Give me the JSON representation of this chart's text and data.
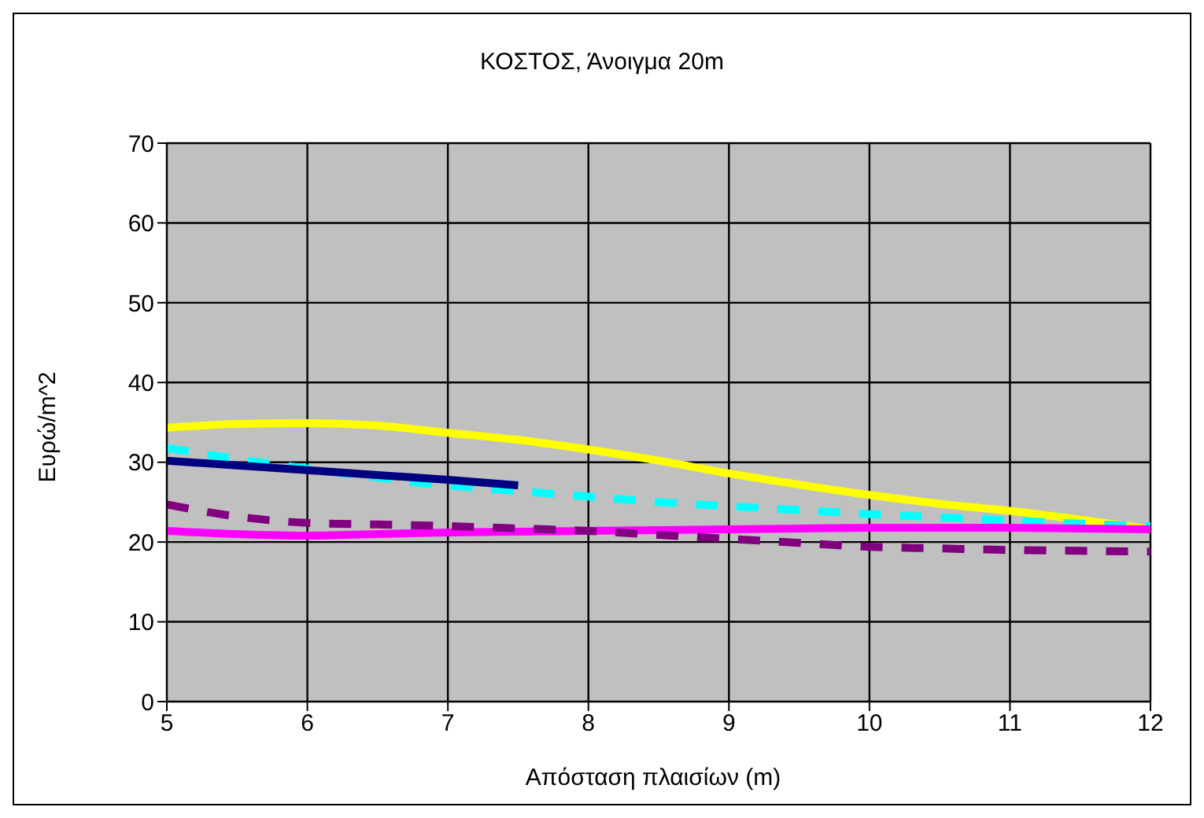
{
  "chart_data": {
    "type": "line",
    "title": "ΚΟΣΤΟΣ, Άνοιγμα 20m",
    "xlabel": "Απόσταση  πλαισίων  (m)",
    "ylabel": "Ευρώ/m^2",
    "x": [
      5,
      5.5,
      6,
      6.5,
      7,
      7.5,
      8,
      8.5,
      9,
      9.5,
      10,
      10.5,
      11,
      11.5,
      12
    ],
    "series": [
      {
        "color": "#ffff00",
        "line_style": "solid",
        "values": [
          34.3,
          34.8,
          34.9,
          34.6,
          33.7,
          32.8,
          31.6,
          30.2,
          28.6,
          27.2,
          25.9,
          24.8,
          23.9,
          22.8,
          21.6
        ]
      },
      {
        "color": "#00ffff",
        "line_style": "dashed",
        "values": [
          31.8,
          30.4,
          29.2,
          28.1,
          27.1,
          26.4,
          25.7,
          25.0,
          24.5,
          24.0,
          23.5,
          23.1,
          22.7,
          22.3,
          22.0
        ]
      },
      {
        "color": "#000080",
        "line_style": "solid",
        "values": [
          30.2,
          29.6,
          29.0,
          28.4,
          27.8,
          27.1,
          null,
          null,
          null,
          null,
          null,
          null,
          null,
          null,
          null
        ]
      },
      {
        "color": "#ff00ff",
        "line_style": "solid",
        "values": [
          21.4,
          21.0,
          20.8,
          21.0,
          21.2,
          21.3,
          21.4,
          21.5,
          21.6,
          21.7,
          21.8,
          21.8,
          21.8,
          21.7,
          21.6
        ]
      },
      {
        "color": "#800080",
        "line_style": "dashed",
        "values": [
          24.7,
          23.2,
          22.4,
          22.2,
          22.0,
          21.7,
          21.4,
          20.9,
          20.4,
          19.9,
          19.4,
          19.2,
          19.0,
          18.9,
          18.8
        ]
      }
    ],
    "xlim": [
      5,
      12
    ],
    "xticks": [
      5,
      6,
      7,
      8,
      9,
      10,
      11,
      12
    ],
    "ylim": [
      0,
      70
    ],
    "yticks": [
      0,
      10,
      20,
      30,
      40,
      50,
      60,
      70
    ],
    "grid": true,
    "legend": false,
    "marker": "none"
  }
}
